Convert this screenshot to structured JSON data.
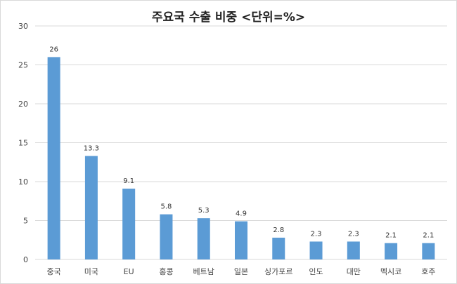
{
  "chart_data": {
    "type": "bar",
    "title": "주요국 수출 비중 <단위=%>",
    "categories": [
      "중국",
      "미국",
      "EU",
      "홍콩",
      "베트남",
      "일본",
      "싱가포르",
      "인도",
      "대만",
      "멕시코",
      "호주"
    ],
    "values": [
      26,
      13.3,
      9.1,
      5.8,
      5.3,
      4.9,
      2.8,
      2.3,
      2.3,
      2.1,
      2.1
    ],
    "value_labels": [
      "26",
      "13.3",
      "9.1",
      "5.8",
      "5.3",
      "4.9",
      "2.8",
      "2.3",
      "2.3",
      "2.1",
      "2.1"
    ],
    "ylim": [
      0,
      30
    ],
    "yticks": [
      "0",
      "5",
      "10",
      "15",
      "20",
      "25",
      "30"
    ],
    "grid": true,
    "legend": "none",
    "colors": {
      "bar": "#5b9bd5",
      "grid": "#d9d9d9"
    }
  }
}
